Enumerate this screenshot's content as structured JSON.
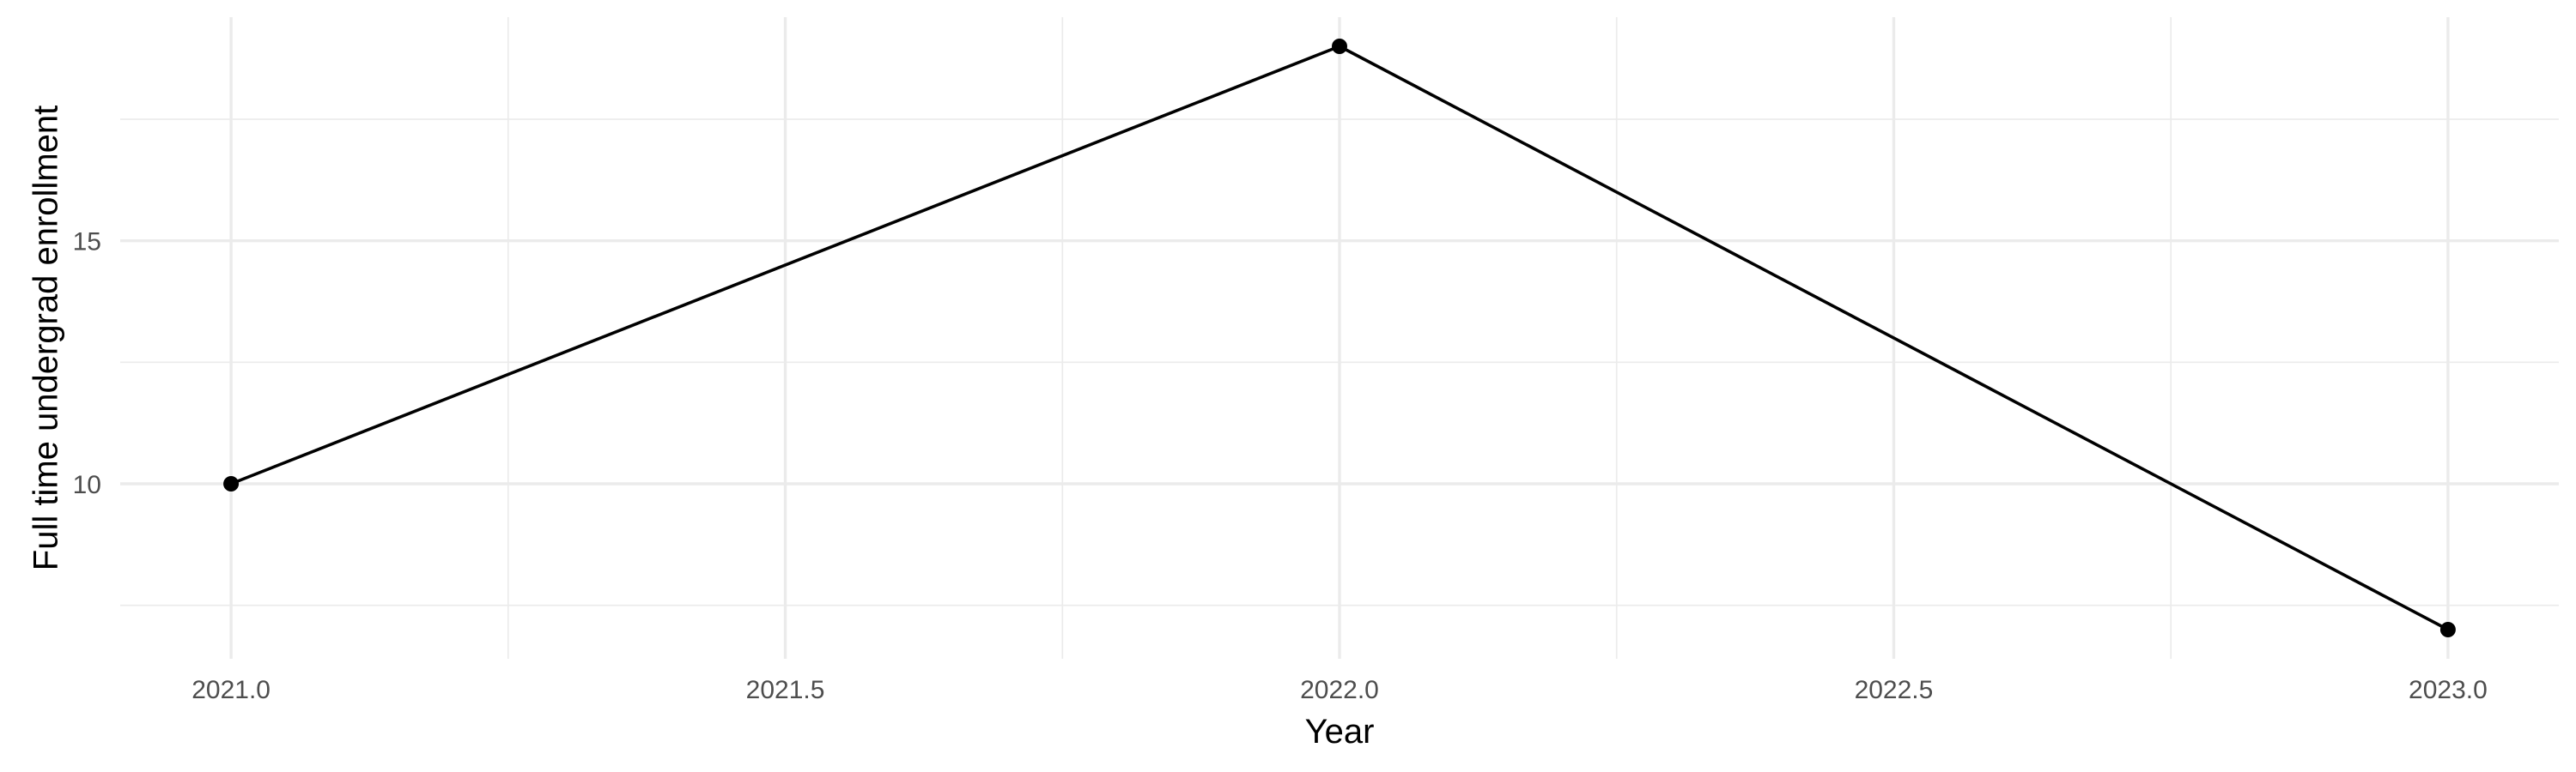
{
  "chart_data": {
    "type": "line",
    "title": "",
    "xlabel": "Year",
    "ylabel": "Full time undergrad enrollment",
    "x": [
      2021,
      2022,
      2023
    ],
    "series": [
      {
        "values": [
          10,
          19,
          7
        ],
        "color": "#000000"
      }
    ],
    "xlim": [
      2020.9,
      2023.1
    ],
    "ylim": [
      6.4,
      19.6
    ],
    "x_ticks": [
      2021.0,
      2021.5,
      2022.0,
      2022.5,
      2023.0
    ],
    "x_tick_labels": [
      "2021.0",
      "2021.5",
      "2022.0",
      "2022.5",
      "2023.0"
    ],
    "y_ticks": [
      10,
      15
    ],
    "y_tick_labels": [
      "10",
      "15"
    ],
    "x_minor_ticks": [
      2021.25,
      2021.75,
      2022.25,
      2022.75
    ],
    "y_minor_ticks": [
      7.5,
      12.5,
      17.5
    ],
    "grid": true,
    "legend": "none"
  }
}
